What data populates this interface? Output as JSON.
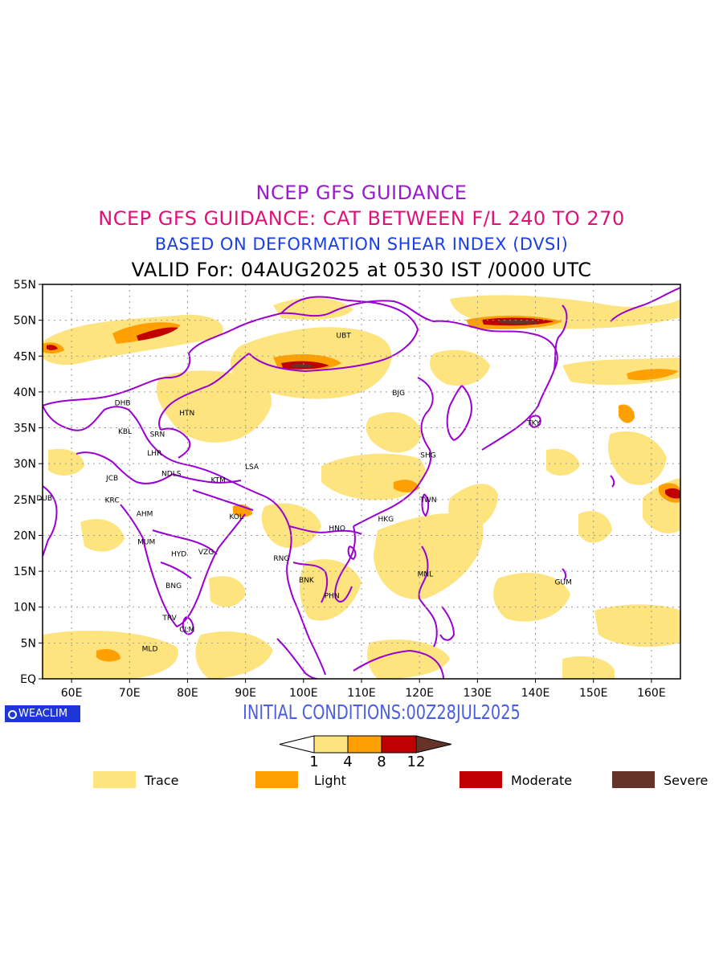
{
  "titles": {
    "line1": "NCEP GFS GUIDANCE",
    "line2": "NCEP GFS GUIDANCE: CAT BETWEEN F/L 240 TO 270",
    "line3": "BASED ON DEFORMATION SHEAR INDEX (DVSI)",
    "line4": "VALID For: 04AUG2025 at 0530 IST /0000 UTC"
  },
  "map": {
    "lon_range": [
      55,
      165
    ],
    "lat_range": [
      0,
      55
    ],
    "lat_ticks": [
      {
        "v": 55,
        "label": "55N"
      },
      {
        "v": 50,
        "label": "50N"
      },
      {
        "v": 45,
        "label": "45N"
      },
      {
        "v": 40,
        "label": "40N"
      },
      {
        "v": 35,
        "label": "35N"
      },
      {
        "v": 30,
        "label": "30N"
      },
      {
        "v": 25,
        "label": "25N"
      },
      {
        "v": 20,
        "label": "20N"
      },
      {
        "v": 15,
        "label": "15N"
      },
      {
        "v": 10,
        "label": "10N"
      },
      {
        "v": 5,
        "label": "5N"
      },
      {
        "v": 0,
        "label": "EQ"
      }
    ],
    "lon_ticks": [
      {
        "v": 60,
        "label": "60E"
      },
      {
        "v": 70,
        "label": "70E"
      },
      {
        "v": 80,
        "label": "80E"
      },
      {
        "v": 90,
        "label": "90E"
      },
      {
        "v": 100,
        "label": "100E"
      },
      {
        "v": 110,
        "label": "110E"
      },
      {
        "v": 120,
        "label": "120E"
      },
      {
        "v": 130,
        "label": "130E"
      },
      {
        "v": 140,
        "label": "140E"
      },
      {
        "v": 150,
        "label": "150E"
      },
      {
        "v": 160,
        "label": "160E"
      }
    ],
    "stations": [
      {
        "code": "UBT",
        "lon": 106.9,
        "lat": 47.9
      },
      {
        "code": "BJG",
        "lon": 116.4,
        "lat": 39.9
      },
      {
        "code": "DHB",
        "lon": 68.8,
        "lat": 38.5
      },
      {
        "code": "HTN",
        "lon": 79.9,
        "lat": 37.1
      },
      {
        "code": "KBL",
        "lon": 69.2,
        "lat": 34.5
      },
      {
        "code": "SRN",
        "lon": 74.8,
        "lat": 34.1
      },
      {
        "code": "TKY",
        "lon": 139.7,
        "lat": 35.7
      },
      {
        "code": "LHR",
        "lon": 74.3,
        "lat": 31.5
      },
      {
        "code": "SHG",
        "lon": 121.5,
        "lat": 31.2
      },
      {
        "code": "LSA",
        "lon": 91.1,
        "lat": 29.6
      },
      {
        "code": "JCB",
        "lon": 67.0,
        "lat": 28.0
      },
      {
        "code": "NDLS",
        "lon": 77.2,
        "lat": 28.6
      },
      {
        "code": "KTM",
        "lon": 85.3,
        "lat": 27.7
      },
      {
        "code": "DUB",
        "lon": 55.3,
        "lat": 25.2
      },
      {
        "code": "KRC",
        "lon": 67.0,
        "lat": 24.9
      },
      {
        "code": "TWN",
        "lon": 121.5,
        "lat": 25.0
      },
      {
        "code": "AHM",
        "lon": 72.6,
        "lat": 23.0
      },
      {
        "code": "KOL",
        "lon": 88.4,
        "lat": 22.6
      },
      {
        "code": "HKG",
        "lon": 114.2,
        "lat": 22.3
      },
      {
        "code": "HNO",
        "lon": 105.8,
        "lat": 21.0
      },
      {
        "code": "MUM",
        "lon": 72.9,
        "lat": 19.1
      },
      {
        "code": "HYD",
        "lon": 78.5,
        "lat": 17.4
      },
      {
        "code": "VZG",
        "lon": 83.2,
        "lat": 17.7
      },
      {
        "code": "RNG",
        "lon": 96.2,
        "lat": 16.8
      },
      {
        "code": "MNL",
        "lon": 121.0,
        "lat": 14.6
      },
      {
        "code": "BNK",
        "lon": 100.5,
        "lat": 13.8
      },
      {
        "code": "GUM",
        "lon": 144.8,
        "lat": 13.5
      },
      {
        "code": "BNG",
        "lon": 77.6,
        "lat": 13.0
      },
      {
        "code": "PHN",
        "lon": 104.9,
        "lat": 11.6
      },
      {
        "code": "TRV",
        "lon": 76.9,
        "lat": 8.5
      },
      {
        "code": "CLM",
        "lon": 79.9,
        "lat": 6.9
      },
      {
        "code": "MLD",
        "lon": 73.5,
        "lat": 4.2
      }
    ]
  },
  "logo": {
    "text": "WEACLIM"
  },
  "initial_conditions": "INITIAL CONDITIONS:00Z28JUL2025",
  "colorbar": {
    "ticks": [
      {
        "value": 1,
        "label": "1"
      },
      {
        "value": 4,
        "label": "4"
      },
      {
        "value": 8,
        "label": "8"
      },
      {
        "value": 12,
        "label": "12"
      }
    ],
    "colors": [
      "#ffffff",
      "#fde47f",
      "#fea004",
      "#c00000",
      "#653327"
    ]
  },
  "legend": [
    {
      "label": "Trace",
      "color": "#fde47f"
    },
    {
      "label": "Light",
      "color": "#fea004"
    },
    {
      "label": "Moderate",
      "color": "#c00000"
    },
    {
      "label": "Severe",
      "color": "#653327"
    }
  ]
}
